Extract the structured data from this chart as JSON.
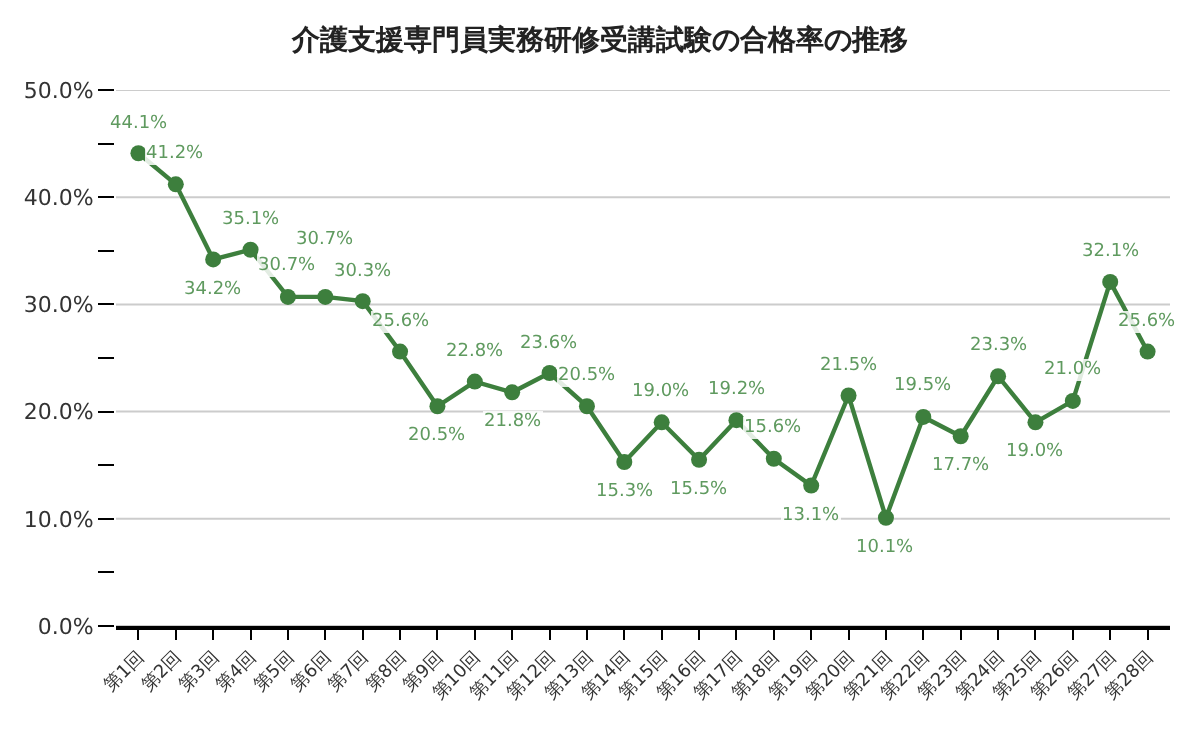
{
  "chart_data": {
    "type": "line",
    "title": "介護支援専門員実務研修受講試験の合格率の推移",
    "categories": [
      "第1回",
      "第2回",
      "第3回",
      "第4回",
      "第5回",
      "第6回",
      "第7回",
      "第8回",
      "第9回",
      "第10回",
      "第11回",
      "第12回",
      "第13回",
      "第14回",
      "第15回",
      "第16回",
      "第17回",
      "第18回",
      "第19回",
      "第20回",
      "第21回",
      "第22回",
      "第23回",
      "第24回",
      "第25回",
      "第26回",
      "第27回",
      "第28回"
    ],
    "series": [
      {
        "color": "#3d7f3d",
        "values": [
          44.1,
          41.2,
          34.2,
          35.1,
          30.7,
          30.7,
          30.3,
          25.6,
          20.5,
          22.8,
          21.8,
          23.6,
          20.5,
          15.3,
          19.0,
          15.5,
          19.2,
          15.6,
          13.1,
          21.5,
          10.1,
          19.5,
          17.7,
          23.3,
          19.0,
          21.0,
          32.1,
          25.6
        ],
        "value_labels": [
          "44.1%",
          "41.2%",
          "34.2%",
          "35.1%",
          "30.7%",
          "30.7%",
          "30.3%",
          "25.6%",
          "20.5%",
          "22.8%",
          "21.8%",
          "23.6%",
          "20.5%",
          "15.3%",
          "19.0%",
          "15.5%",
          "19.2%",
          "15.6%",
          "13.1%",
          "21.5%",
          "10.1%",
          "19.5%",
          "17.7%",
          "23.3%",
          "19.0%",
          "21.0%",
          "32.1%",
          "25.6%"
        ]
      }
    ],
    "ylim": [
      0,
      50
    ],
    "yticks": [
      {
        "value": 0,
        "label": "0.0%"
      },
      {
        "value": 5,
        "label": null
      },
      {
        "value": 10,
        "label": "10.0%"
      },
      {
        "value": 15,
        "label": null
      },
      {
        "value": 20,
        "label": "20.0%"
      },
      {
        "value": 25,
        "label": null
      },
      {
        "value": 30,
        "label": "30.0%"
      },
      {
        "value": 35,
        "label": null
      },
      {
        "value": 40,
        "label": "40.0%"
      },
      {
        "value": 45,
        "label": null
      },
      {
        "value": 50,
        "label": "50.0%"
      }
    ],
    "grid": "y",
    "marker": "circle",
    "line_style": "solid",
    "legend": false
  }
}
